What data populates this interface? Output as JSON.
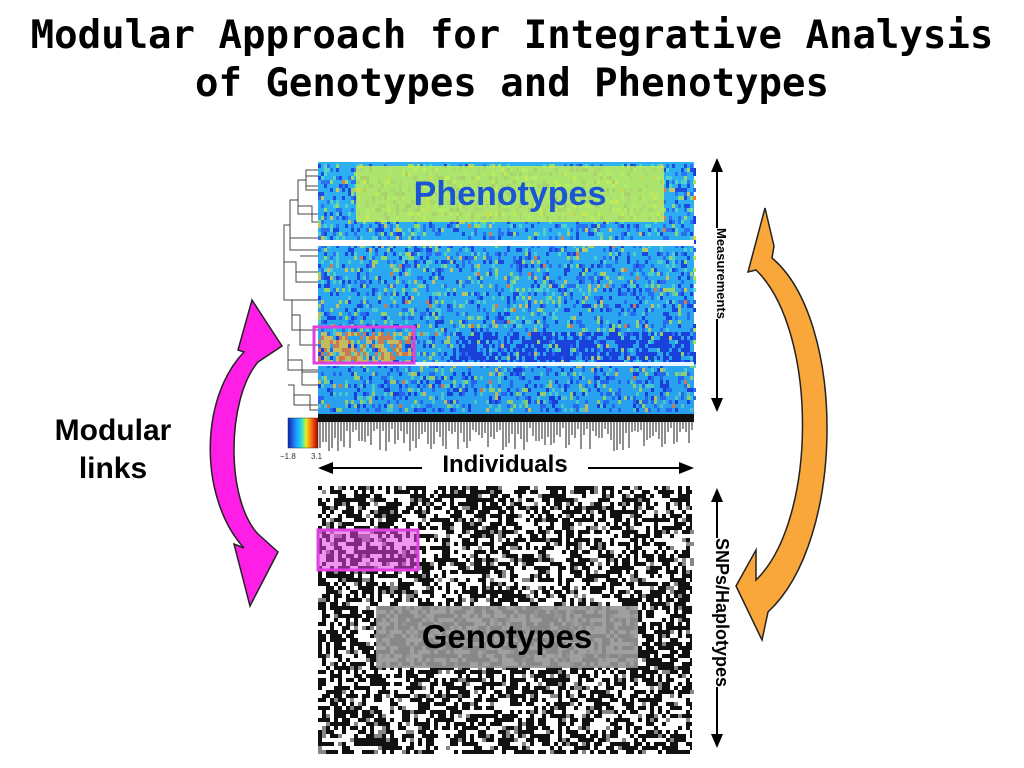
{
  "title": {
    "line1": "Modular Approach for Integrative Analysis",
    "line2": "of Genotypes and Phenotypes"
  },
  "labels": {
    "modular_links_line1": "Modular",
    "modular_links_line2": "links",
    "phenotypes": "Phenotypes",
    "genotypes": "Genotypes",
    "individuals": "Individuals",
    "measurements": "Measurements",
    "snps": "SNPs/Haplotypes"
  },
  "colorbar": {
    "min": "−1.8",
    "max": "3.1"
  },
  "colors": {
    "magenta_arrow": "#ff1ee6",
    "orange_arrow": "#f9a63a",
    "module_box": "#e040e0",
    "phenotype_label_bg": "#c8f050",
    "phenotype_label_text": "#1a55d6",
    "genotype_label_bg": "#969696",
    "heatmap_base": "#2db4f0"
  }
}
